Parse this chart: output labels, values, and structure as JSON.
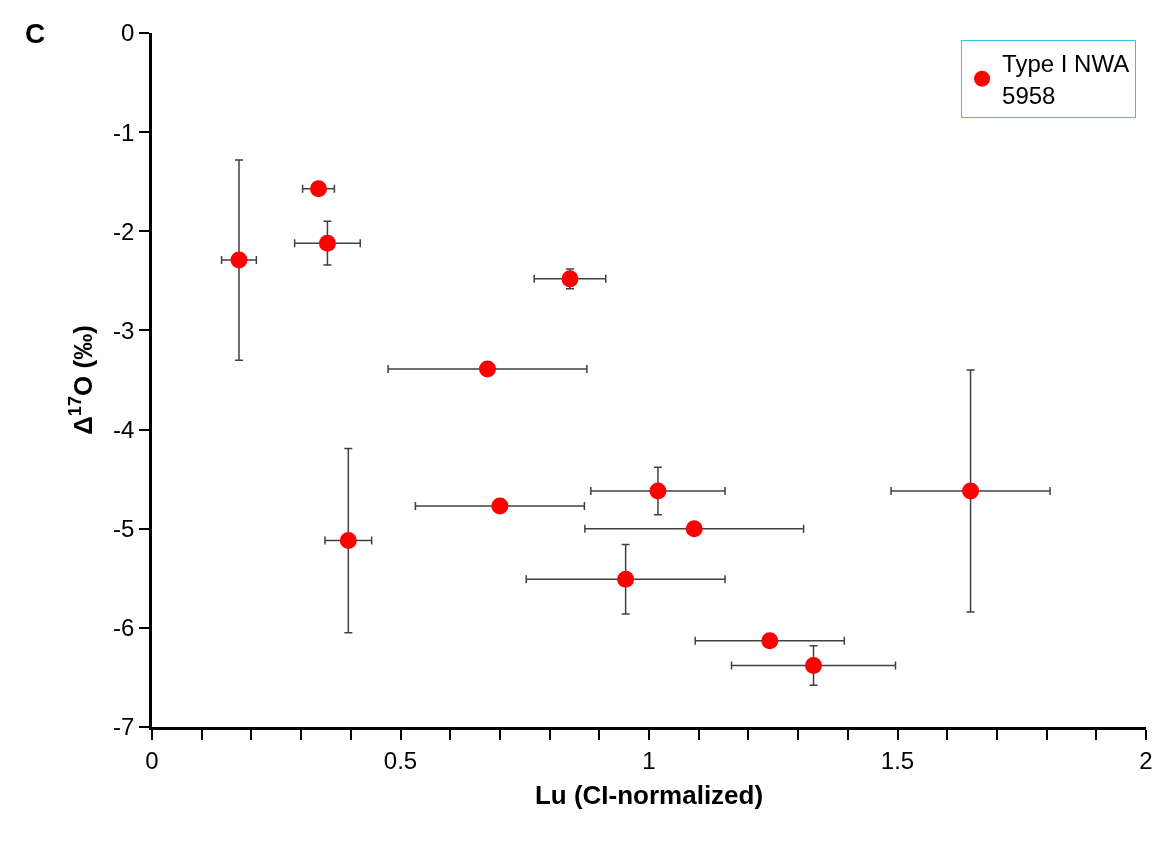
{
  "chart_data": {
    "type": "scatter",
    "xlabel": "Lu (CI-normalized)",
    "ylabel": "Δ$^{17}$O (‰)",
    "annotations": [
      "C"
    ],
    "x": [
      0.175,
      0.335,
      0.353,
      0.841,
      0.675,
      0.395,
      0.7,
      1.018,
      1.091,
      0.953,
      1.243,
      1.331,
      1.647
    ],
    "series": [
      {
        "name": "Type I NWA 5958",
        "color": "#ff0000",
        "values": [
          -2.29,
          -1.57,
          -2.12,
          -2.48,
          -3.39,
          -5.12,
          -4.77,
          -4.62,
          -5.0,
          -5.51,
          -6.13,
          -6.38,
          -4.62
        ],
        "errors": [
          1.01,
          null,
          0.22,
          0.1,
          null,
          0.93,
          null,
          0.24,
          null,
          0.35,
          null,
          0.2,
          1.22
        ],
        "xerrors": [
          0.035,
          0.032,
          0.066,
          0.072,
          0.2,
          0.047,
          0.17,
          0.135,
          0.22,
          0.2,
          0.15,
          0.165,
          0.16
        ]
      }
    ],
    "xlim": [
      0,
      2
    ],
    "ylim": [
      -7,
      0
    ],
    "xticks": [
      0,
      {
        "value": 0.1,
        "label": null
      },
      {
        "value": 0.2,
        "label": null
      },
      {
        "value": 0.3,
        "label": null
      },
      {
        "value": 0.4,
        "label": null
      },
      0.5,
      {
        "value": 0.6,
        "label": null
      },
      {
        "value": 0.7,
        "label": null
      },
      {
        "value": 0.8,
        "label": null
      },
      {
        "value": 0.9,
        "label": null
      },
      1,
      {
        "value": 1.1,
        "label": null
      },
      {
        "value": 1.2,
        "label": null
      },
      {
        "value": 1.3,
        "label": null
      },
      {
        "value": 1.4,
        "label": null
      },
      1.5,
      {
        "value": 1.6,
        "label": null
      },
      {
        "value": 1.7,
        "label": null
      },
      {
        "value": 1.8,
        "label": null
      },
      {
        "value": 1.9,
        "label": null
      },
      2
    ],
    "yticks": [
      -7,
      -6,
      -5,
      -4,
      -3,
      -2,
      -1,
      0
    ],
    "legend": "top right",
    "marker": "circle"
  }
}
